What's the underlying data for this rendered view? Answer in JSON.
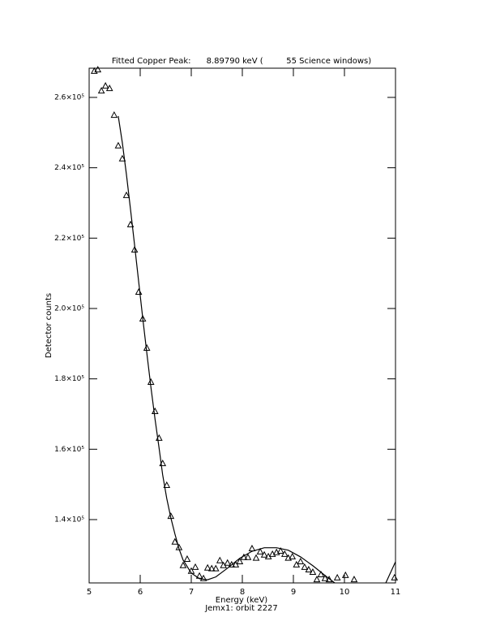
{
  "chart_data": {
    "type": "scatter",
    "title": "Fitted Copper Peak:      8.89790 keV (         55 Science windows)",
    "x_label": "Energy (keV)",
    "subtitle": "Jemx1: orbit 2227",
    "y_label": "Detector counts",
    "xlim": [
      5,
      11
    ],
    "xticks": [
      5,
      6,
      7,
      8,
      9,
      10,
      11
    ],
    "ylim": [
      122000,
      268300
    ],
    "yticks": [
      {
        "value": 140000,
        "label": "1.4×10⁵"
      },
      {
        "value": 160000,
        "label": "1.6×10⁵"
      },
      {
        "value": 180000,
        "label": "1.8×10⁵"
      },
      {
        "value": 200000,
        "label": "2.0×10⁵"
      },
      {
        "value": 220000,
        "label": "2.2×10⁵"
      },
      {
        "value": 240000,
        "label": "2.4×10⁵"
      },
      {
        "value": 260000,
        "label": "2.6×10⁵"
      }
    ],
    "series": [
      {
        "mode": "markers",
        "marker": "triangle",
        "color": "#000000",
        "x": [
          5.1,
          5.17,
          5.24,
          5.32,
          5.4,
          5.49,
          5.57,
          5.65,
          5.73,
          5.81,
          5.89,
          5.97,
          6.05,
          6.13,
          6.21,
          6.29,
          6.37,
          6.44,
          6.52,
          6.6,
          6.68,
          6.76,
          6.84,
          6.92,
          7.0,
          7.08,
          7.16,
          7.24,
          7.32,
          7.4,
          7.48,
          7.56,
          7.63,
          7.71,
          7.79,
          7.87,
          7.95,
          8.03,
          8.11,
          8.19,
          8.27,
          8.35,
          8.43,
          8.51,
          8.59,
          8.67,
          8.75,
          8.83,
          8.9,
          8.98,
          9.06,
          9.14,
          9.22,
          9.3,
          9.38,
          9.46,
          9.54,
          9.62,
          9.7,
          9.86,
          10.02,
          10.19,
          10.98
        ],
        "values": [
          267400,
          267800,
          261800,
          263200,
          262500,
          254900,
          246200,
          242500,
          232100,
          223800,
          216600,
          204600,
          197000,
          188700,
          179000,
          170700,
          163100,
          155900,
          149700,
          140900,
          133600,
          132000,
          126900,
          128700,
          125300,
          126400,
          123900,
          123200,
          126200,
          126000,
          126000,
          128300,
          126900,
          127600,
          127100,
          127100,
          128000,
          129200,
          129200,
          131700,
          129000,
          130800,
          129900,
          129400,
          130100,
          130600,
          131000,
          130100,
          129000,
          129400,
          127100,
          128000,
          126400,
          125700,
          125000,
          122900,
          124300,
          123200,
          122900,
          123400,
          124100,
          122900,
          123400
        ]
      },
      {
        "mode": "line",
        "color": "#000000",
        "x": [
          5.57,
          5.65,
          5.73,
          5.81,
          5.89,
          5.97,
          6.05,
          6.13,
          6.21,
          6.29,
          6.37,
          6.44,
          6.52,
          6.6,
          6.68,
          6.76,
          6.84,
          7.0,
          7.16,
          7.32,
          7.48,
          7.71,
          7.95,
          8.19,
          8.43,
          8.67,
          8.9,
          9.14,
          9.38,
          9.62,
          9.81,
          10.4,
          10.81,
          11.0
        ],
        "values": [
          254700,
          247100,
          238100,
          228200,
          218000,
          207600,
          197200,
          187300,
          177600,
          168600,
          160300,
          152700,
          146000,
          140500,
          135900,
          131700,
          128500,
          124800,
          123200,
          122900,
          123700,
          126200,
          129000,
          131000,
          132000,
          132000,
          131300,
          129400,
          126900,
          124100,
          122000,
          null,
          122000,
          128000
        ]
      }
    ]
  }
}
